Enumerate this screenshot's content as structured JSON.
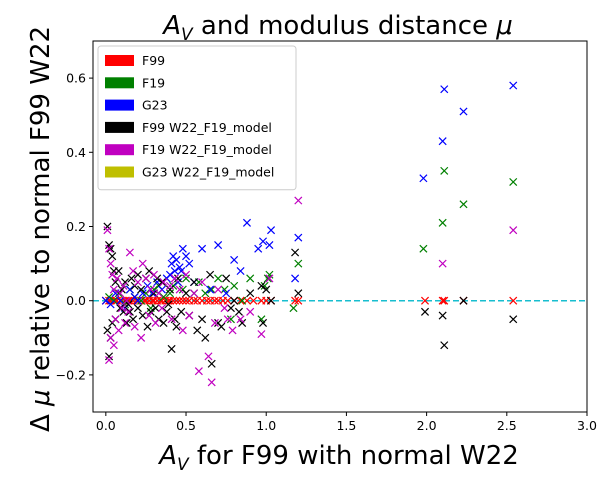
{
  "chart_data": {
    "type": "scatter",
    "title": "A_V and modulus distance μ",
    "title_parts": {
      "a": "A",
      "sub": "V",
      "rest": " and modulus distance ",
      "mu": "μ"
    },
    "xlabel": "A_V for F99 with normal W22",
    "xlabel_parts": {
      "a": "A",
      "sub": "V",
      "rest": " for F99 with normal W22"
    },
    "ylabel": "Δ μ relative to normal F99 W22",
    "ylabel_parts": {
      "delta": "Δ ",
      "mu": "μ",
      "rest": " relative to normal F99 W22"
    },
    "xlim": [
      -0.08,
      3.0
    ],
    "ylim": [
      -0.3,
      0.7
    ],
    "xticks": [
      0.0,
      0.5,
      1.0,
      1.5,
      2.0,
      2.5,
      3.0
    ],
    "xtick_labels": [
      "0.0",
      "0.5",
      "1.0",
      "1.5",
      "2.0",
      "2.5",
      "3.0"
    ],
    "yticks": [
      -0.2,
      0.0,
      0.2,
      0.4,
      0.6
    ],
    "ytick_labels": [
      "−0.2",
      "0.0",
      "0.2",
      "0.4",
      "0.6"
    ],
    "grid": false,
    "legend_placement": "upper-left",
    "marker": "x",
    "reference_line": {
      "y": 0.0,
      "color": "#17becf",
      "style": "dashed"
    },
    "series": [
      {
        "name": "F99",
        "color": "#ff0000",
        "x": [
          0.0,
          0.02,
          0.03,
          0.05,
          0.06,
          0.07,
          0.09,
          0.1,
          0.12,
          0.14,
          0.15,
          0.17,
          0.19,
          0.2,
          0.22,
          0.24,
          0.25,
          0.27,
          0.29,
          0.3,
          0.32,
          0.34,
          0.35,
          0.37,
          0.39,
          0.4,
          0.42,
          0.44,
          0.46,
          0.48,
          0.5,
          0.52,
          0.55,
          0.57,
          0.6,
          0.63,
          0.65,
          0.68,
          0.7,
          0.73,
          0.76,
          0.8,
          0.84,
          0.88,
          0.92,
          0.97,
          1.0,
          1.03,
          1.18,
          1.2,
          1.99,
          2.1,
          2.11,
          2.23,
          2.54
        ],
        "y": [
          0,
          0,
          0,
          0,
          0,
          0,
          0,
          0,
          0,
          0,
          0,
          0,
          0,
          0,
          0,
          0,
          0,
          0,
          0,
          0,
          0,
          0,
          0,
          0,
          0,
          0,
          0,
          0,
          0,
          0,
          0,
          0,
          0,
          0,
          0,
          0,
          0,
          0,
          0,
          0,
          0,
          0,
          0,
          0,
          0,
          0,
          0,
          0,
          0,
          0,
          0,
          0,
          0,
          0,
          0
        ]
      },
      {
        "name": "F19",
        "color": "#008000",
        "x": [
          0.02,
          0.05,
          0.08,
          0.12,
          0.15,
          0.18,
          0.22,
          0.25,
          0.28,
          0.3,
          0.33,
          0.36,
          0.4,
          0.42,
          0.45,
          0.48,
          0.5,
          0.55,
          0.58,
          0.62,
          0.66,
          0.7,
          0.74,
          0.78,
          0.8,
          0.85,
          0.9,
          0.97,
          0.99,
          1.01,
          1.02,
          1.17,
          1.2,
          1.98,
          2.1,
          2.11,
          2.23,
          2.54
        ],
        "y": [
          0.01,
          0.0,
          0.02,
          -0.01,
          0.03,
          0.01,
          0.0,
          0.02,
          -0.02,
          0.03,
          0.04,
          0.01,
          0.02,
          0.04,
          0.05,
          0.03,
          0.06,
          0.02,
          0.05,
          0.02,
          0.03,
          0.06,
          0.03,
          -0.05,
          0.04,
          0.0,
          0.06,
          -0.05,
          0.04,
          0.06,
          0.07,
          -0.02,
          0.1,
          0.14,
          0.21,
          0.35,
          0.26,
          0.32
        ]
      },
      {
        "name": "G23",
        "color": "#0000ff",
        "x": [
          0.0,
          0.03,
          0.06,
          0.09,
          0.12,
          0.15,
          0.18,
          0.2,
          0.23,
          0.26,
          0.29,
          0.32,
          0.35,
          0.38,
          0.4,
          0.41,
          0.42,
          0.43,
          0.44,
          0.45,
          0.46,
          0.47,
          0.48,
          0.5,
          0.52,
          0.55,
          0.6,
          0.65,
          0.7,
          0.75,
          0.8,
          0.84,
          0.88,
          0.95,
          0.98,
          1.02,
          1.03,
          1.18,
          1.2,
          1.98,
          2.1,
          2.11,
          2.23,
          2.54
        ],
        "y": [
          0.0,
          -0.01,
          0.02,
          0.0,
          -0.02,
          0.03,
          0.01,
          0.0,
          0.02,
          0.04,
          0.02,
          0.05,
          0.03,
          0.06,
          0.07,
          0.1,
          0.12,
          0.08,
          0.11,
          0.05,
          0.09,
          0.08,
          0.14,
          0.12,
          0.1,
          0.05,
          0.14,
          0.03,
          0.15,
          0.02,
          0.11,
          0.08,
          0.21,
          0.14,
          0.16,
          0.15,
          0.19,
          0.06,
          0.17,
          0.33,
          0.43,
          0.57,
          0.51,
          0.58
        ]
      },
      {
        "name": "F99 W22_F19_model",
        "color": "#000000",
        "x": [
          0.01,
          0.02,
          0.03,
          0.04,
          0.05,
          0.06,
          0.08,
          0.1,
          0.12,
          0.14,
          0.16,
          0.18,
          0.2,
          0.22,
          0.25,
          0.27,
          0.3,
          0.32,
          0.35,
          0.38,
          0.4,
          0.43,
          0.45,
          0.5,
          0.55,
          0.6,
          0.65,
          0.7,
          0.75,
          0.8,
          0.85,
          0.9,
          0.97,
          1.0,
          1.03,
          1.18,
          1.2,
          1.99,
          2.1,
          2.11,
          2.23,
          2.54,
          0.01,
          0.02,
          0.03,
          0.04,
          0.06,
          0.09,
          0.11,
          0.13,
          0.15,
          0.17,
          0.2,
          0.23,
          0.26,
          0.28,
          0.31,
          0.33,
          0.36,
          0.39,
          0.41,
          0.44,
          0.47,
          0.52,
          0.57,
          0.62,
          0.66,
          0.72,
          0.78,
          0.83,
          0.98
        ],
        "y": [
          0.2,
          0.15,
          0.14,
          0.12,
          0.08,
          0.05,
          0.08,
          0.03,
          0.05,
          -0.01,
          0.06,
          0.04,
          0.07,
          0.03,
          0.06,
          0.08,
          0.02,
          0.06,
          0.05,
          -0.03,
          0.03,
          -0.05,
          0.06,
          0.02,
          0.05,
          -0.05,
          0.07,
          -0.06,
          0.06,
          0.0,
          -0.06,
          0.02,
          0.04,
          0.03,
          0.0,
          0.13,
          0.02,
          -0.03,
          -0.04,
          -0.12,
          0.0,
          -0.05,
          -0.08,
          -0.15,
          -0.1,
          -0.06,
          -0.05,
          -0.02,
          -0.03,
          -0.06,
          -0.03,
          -0.05,
          -0.02,
          -0.04,
          -0.07,
          -0.03,
          -0.02,
          -0.05,
          -0.06,
          -0.01,
          -0.13,
          -0.07,
          -0.03,
          -0.04,
          -0.08,
          -0.1,
          -0.17,
          -0.07,
          -0.02,
          -0.03,
          -0.06
        ]
      },
      {
        "name": "F19 W22_F19_model",
        "color": "#c000c0",
        "x": [
          0.01,
          0.02,
          0.03,
          0.04,
          0.05,
          0.07,
          0.09,
          0.11,
          0.13,
          0.15,
          0.17,
          0.2,
          0.23,
          0.25,
          0.28,
          0.3,
          0.33,
          0.36,
          0.4,
          0.43,
          0.46,
          0.5,
          0.55,
          0.6,
          0.64,
          0.66,
          0.7,
          0.76,
          0.79,
          0.97,
          1.02,
          1.2,
          2.1,
          2.54,
          0.02,
          0.03,
          0.05,
          0.06,
          0.08,
          0.1,
          0.12,
          0.14,
          0.18,
          0.22,
          0.27,
          0.31,
          0.35,
          0.41,
          0.48,
          0.52,
          0.58,
          0.68,
          0.74,
          0.84,
          0.9
        ],
        "y": [
          0.19,
          0.14,
          0.1,
          0.07,
          0.03,
          0.06,
          0.02,
          0.04,
          0.0,
          0.13,
          0.08,
          0.05,
          0.1,
          0.06,
          0.03,
          0.07,
          0.02,
          0.05,
          0.04,
          0.06,
          0.03,
          0.07,
          0.02,
          0.05,
          -0.15,
          -0.22,
          0.03,
          -0.05,
          -0.08,
          -0.09,
          0.06,
          0.27,
          0.1,
          0.19,
          -0.16,
          -0.1,
          -0.12,
          -0.05,
          -0.08,
          -0.02,
          -0.06,
          -0.03,
          -0.07,
          -0.1,
          -0.04,
          -0.06,
          -0.02,
          -0.05,
          -0.08,
          -0.04,
          -0.19,
          -0.06,
          -0.02,
          -0.05,
          -0.03
        ]
      },
      {
        "name": "G23 W22_F19_model",
        "color": "#bfbf00",
        "x": [],
        "y": []
      }
    ]
  }
}
